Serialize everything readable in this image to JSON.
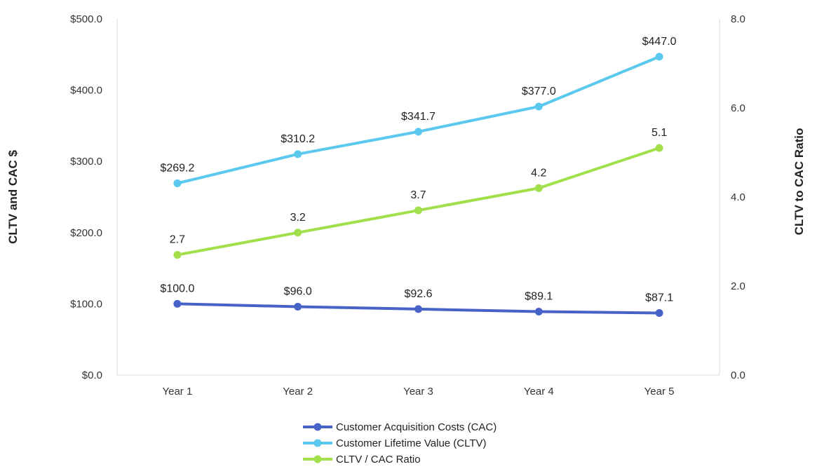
{
  "chart_data": {
    "type": "line",
    "categories": [
      "Year 1",
      "Year 2",
      "Year 3",
      "Year 4",
      "Year 5"
    ],
    "y_left": {
      "label": "CLTV and CAC $",
      "range": [
        0,
        500
      ],
      "ticks": [
        "$0.0",
        "$100.0",
        "$200.0",
        "$300.0",
        "$400.0",
        "$500.0"
      ]
    },
    "y_right": {
      "label": "CLTV to CAC Ratio",
      "range": [
        0,
        8
      ],
      "ticks": [
        "0.0",
        "2.0",
        "4.0",
        "6.0",
        "8.0"
      ]
    },
    "series": [
      {
        "name": "Customer Acquisition Costs (CAC)",
        "axis": "left",
        "color": "#4863C8",
        "values": [
          100.0,
          96.0,
          92.6,
          89.1,
          87.1
        ],
        "labels": [
          "$100.0",
          "$96.0",
          "$92.6",
          "$89.1",
          "$87.1"
        ]
      },
      {
        "name": "Customer Lifetime Value (CLTV)",
        "axis": "left",
        "color": "#5BC8EE",
        "values": [
          269.2,
          310.2,
          341.7,
          377.0,
          447.0
        ],
        "labels": [
          "$269.2",
          "$310.2",
          "$341.7",
          "$377.0",
          "$447.0"
        ]
      },
      {
        "name": "CLTV / CAC Ratio",
        "axis": "right",
        "color": "#A1E04A",
        "values": [
          2.7,
          3.2,
          3.7,
          4.2,
          5.1
        ],
        "labels": [
          "2.7",
          "3.2",
          "3.7",
          "4.2",
          "5.1"
        ]
      }
    ],
    "grid": false,
    "legend_position": "bottom-center"
  }
}
